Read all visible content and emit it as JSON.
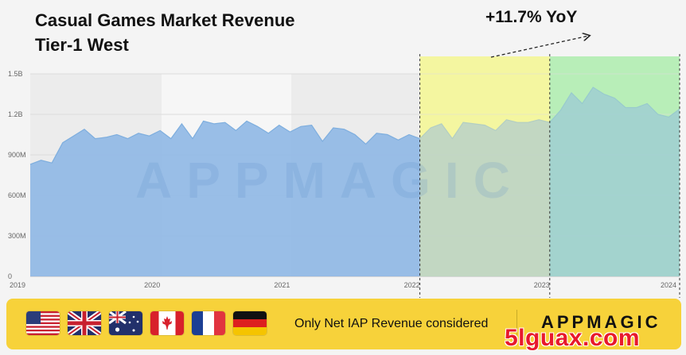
{
  "header": {
    "title_line1": "Casual Games Market Revenue",
    "title_line2": "Tier-1 West",
    "yoy": "+11.7% YoY"
  },
  "chart_data": {
    "type": "area",
    "title": "Casual Games Market Revenue Tier-1 West",
    "subtitle": "",
    "xlabel": "",
    "ylabel": "",
    "ylim": [
      0,
      1500000000
    ],
    "yticks": [
      {
        "value": 0,
        "label": "0"
      },
      {
        "value": 300000000,
        "label": "300M"
      },
      {
        "value": 600000000,
        "label": "600M"
      },
      {
        "value": 900000000,
        "label": "900M"
      },
      {
        "value": 1200000000,
        "label": "1.2B"
      },
      {
        "value": 1500000000,
        "label": "1.5B"
      }
    ],
    "xticks": [
      {
        "x": 0,
        "label": "2019"
      },
      {
        "x": 12,
        "label": "2020"
      },
      {
        "x": 24,
        "label": "2021"
      },
      {
        "x": 36,
        "label": "2022"
      },
      {
        "x": 48,
        "label": "2023"
      },
      {
        "x": 60,
        "label": "2024"
      }
    ],
    "x": [
      0,
      1,
      2,
      3,
      4,
      5,
      6,
      7,
      8,
      9,
      10,
      11,
      12,
      13,
      14,
      15,
      16,
      17,
      18,
      19,
      20,
      21,
      22,
      23,
      24,
      25,
      26,
      27,
      28,
      29,
      30,
      31,
      32,
      33,
      34,
      35,
      36,
      37,
      38,
      39,
      40,
      41,
      42,
      43,
      44,
      45,
      46,
      47,
      48,
      49,
      50,
      51,
      52,
      53,
      54,
      55,
      56,
      57,
      58,
      59,
      60
    ],
    "values": [
      830,
      860,
      840,
      990,
      1040,
      1090,
      1020,
      1030,
      1050,
      1020,
      1060,
      1040,
      1080,
      1020,
      1130,
      1020,
      1150,
      1130,
      1140,
      1080,
      1150,
      1110,
      1060,
      1120,
      1070,
      1110,
      1120,
      1000,
      1100,
      1090,
      1050,
      980,
      1060,
      1050,
      1010,
      1050,
      1020,
      1100,
      1130,
      1020,
      1140,
      1130,
      1120,
      1080,
      1160,
      1140,
      1140,
      1160,
      1140,
      1230,
      1360,
      1280,
      1400,
      1350,
      1320,
      1250,
      1250,
      1280,
      1200,
      1180,
      1240
    ],
    "value_unit": "millions USD",
    "highlights": [
      {
        "from": 36,
        "to": 48,
        "color": "#f4f6a0",
        "label": ""
      },
      {
        "from": 48,
        "to": 60,
        "color": "#b8eeb8",
        "label": ""
      }
    ],
    "series_color": "#8fb8e6",
    "grid": true
  },
  "footer": {
    "flags": [
      "flag-us-icon",
      "flag-uk-icon",
      "flag-australia-icon",
      "flag-canada-icon",
      "flag-france-icon",
      "flag-germany-icon"
    ],
    "note": "Only Net IAP Revenue considered",
    "brand": "APPMAGIC",
    "background": "#f7d23a"
  },
  "watermarks": {
    "chart": "APPMAGIC",
    "corner": "5lguax.com"
  }
}
